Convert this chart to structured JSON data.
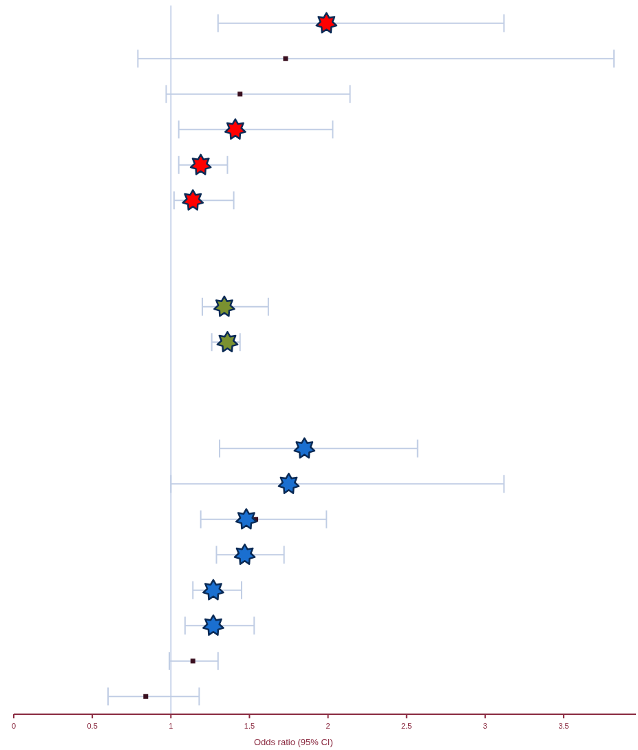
{
  "chart_data": {
    "type": "scatter",
    "orientation": "horizontal",
    "xlabel": "Odds ratio (95% CI)",
    "categories": [
      null,
      null,
      null,
      null,
      null,
      null,
      null,
      null,
      null,
      null,
      null,
      null,
      null,
      null,
      null,
      null,
      null,
      null,
      null,
      null
    ],
    "xlim": [
      0,
      3.96
    ],
    "xticks": [
      0,
      0.5,
      1,
      1.5,
      2,
      2.5,
      3,
      3.5
    ],
    "tick_labels": "x",
    "ref_lines": [
      {
        "axis": "x",
        "value": 1,
        "color": "#c8d4ea"
      }
    ],
    "series": [
      {
        "color": "#ff0000",
        "marker": "star",
        "values": [
          1.99,
          null,
          null,
          1.41,
          1.19,
          1.14,
          null,
          null,
          null,
          null,
          null,
          null,
          null,
          null,
          null,
          null,
          null,
          null,
          null,
          null
        ],
        "errors": [
          [
            1.3,
            3.12
          ],
          null,
          null,
          [
            1.05,
            2.03
          ],
          [
            1.05,
            1.36
          ],
          [
            1.02,
            1.4
          ],
          null,
          null,
          null,
          null,
          null,
          null,
          null,
          null,
          null,
          null,
          null,
          null,
          null,
          null
        ]
      },
      {
        "color": "#7a9130",
        "marker": "star",
        "values": [
          null,
          null,
          null,
          null,
          null,
          null,
          null,
          null,
          1.34,
          1.36,
          null,
          null,
          null,
          null,
          null,
          null,
          null,
          null,
          null,
          null
        ],
        "errors": [
          null,
          null,
          null,
          null,
          null,
          null,
          null,
          null,
          [
            1.2,
            1.62
          ],
          [
            1.26,
            1.44
          ],
          null,
          null,
          null,
          null,
          null,
          null,
          null,
          null,
          null,
          null
        ]
      },
      {
        "color": "#1a6fd0",
        "marker": "star",
        "values": [
          null,
          null,
          null,
          null,
          null,
          null,
          null,
          null,
          null,
          null,
          null,
          null,
          1.85,
          1.75,
          1.48,
          1.47,
          1.27,
          1.27,
          null,
          null
        ],
        "errors": [
          null,
          null,
          null,
          null,
          null,
          null,
          null,
          null,
          null,
          null,
          null,
          null,
          [
            1.31,
            2.57
          ],
          [
            1.0,
            3.12
          ],
          [
            1.19,
            1.99
          ],
          [
            1.29,
            1.72
          ],
          [
            1.14,
            1.45
          ],
          [
            1.09,
            1.53
          ],
          null,
          null
        ]
      },
      {
        "color": "#3a1020",
        "marker": "square",
        "values": [
          null,
          1.73,
          1.44,
          null,
          null,
          null,
          null,
          null,
          null,
          null,
          null,
          null,
          null,
          null,
          1.54,
          null,
          null,
          null,
          1.14,
          0.84
        ],
        "errors": [
          null,
          [
            0.79,
            3.82
          ],
          [
            0.97,
            2.14
          ],
          null,
          null,
          null,
          null,
          null,
          null,
          null,
          null,
          null,
          null,
          null,
          null,
          null,
          null,
          null,
          [
            0.99,
            1.3
          ],
          [
            0.6,
            1.18
          ]
        ]
      }
    ]
  }
}
